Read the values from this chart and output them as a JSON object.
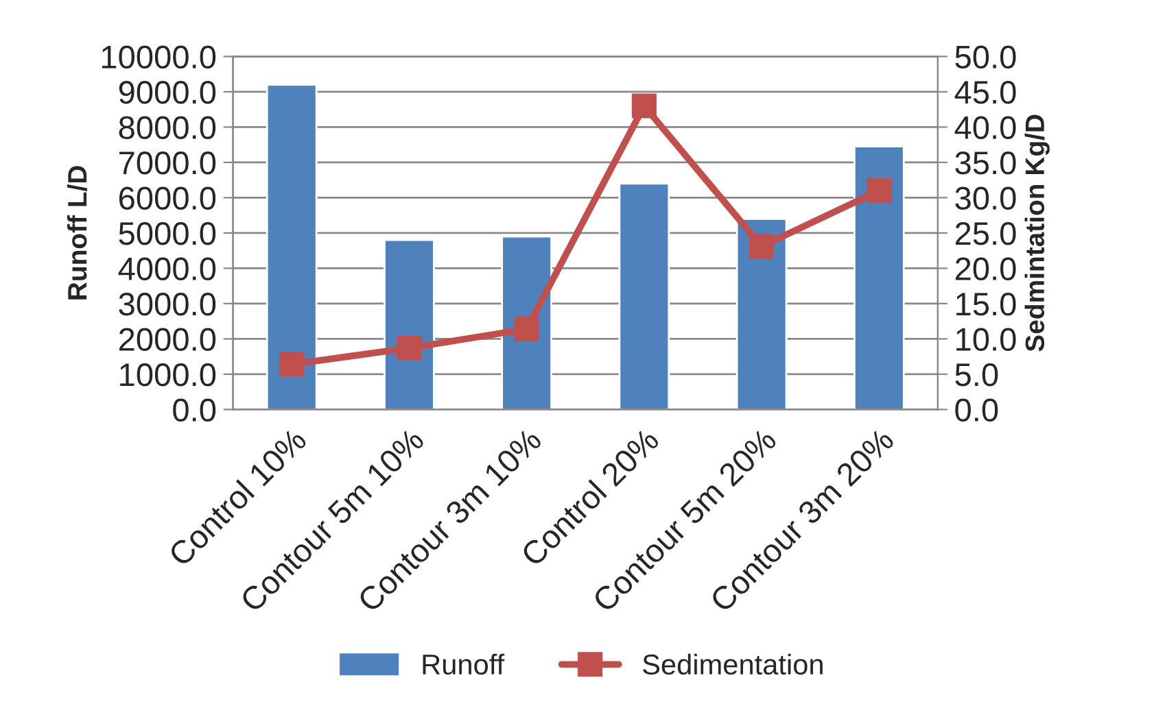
{
  "chart_data": {
    "type": "bar",
    "categories": [
      "Control 10%",
      "Contour 5m 10%",
      "Contour 3m 10%",
      "Control 20%",
      "Contour 5m 20%",
      "Contour 3m 20%"
    ],
    "series": [
      {
        "name": "Runoff",
        "color": "#4f81bd",
        "values": [
          9200,
          4800,
          4900,
          6400,
          5400,
          7450
        ]
      },
      {
        "name": "Sedimentation",
        "type": "line",
        "axis": "y2",
        "color": "#c0504d",
        "marker": "square",
        "values": [
          6.4,
          8.7,
          11.4,
          43.0,
          23.1,
          31.0
        ]
      }
    ],
    "ylabel": "Runoff L/D",
    "y2label": "Sedmintation Kg/D",
    "ylim": [
      0,
      10000
    ],
    "yticks": [
      {
        "value": 0,
        "label": "0.0"
      },
      {
        "value": 1000,
        "label": "1000.0"
      },
      {
        "value": 2000,
        "label": "2000.0"
      },
      {
        "value": 3000,
        "label": "3000.0"
      },
      {
        "value": 4000,
        "label": "4000.0"
      },
      {
        "value": 5000,
        "label": "5000.0"
      },
      {
        "value": 6000,
        "label": "6000.0"
      },
      {
        "value": 7000,
        "label": "7000.0"
      },
      {
        "value": 8000,
        "label": "8000.0"
      },
      {
        "value": 9000,
        "label": "9000.0"
      },
      {
        "value": 10000,
        "label": "10000.0"
      }
    ],
    "y2lim": [
      0,
      50
    ],
    "y2ticks": [
      {
        "value": 0,
        "label": "0.0"
      },
      {
        "value": 5,
        "label": "5.0"
      },
      {
        "value": 10,
        "label": "10.0"
      },
      {
        "value": 15,
        "label": "15.0"
      },
      {
        "value": 20,
        "label": "20.0"
      },
      {
        "value": 25,
        "label": "25.0"
      },
      {
        "value": 30,
        "label": "30.0"
      },
      {
        "value": 35,
        "label": "35.0"
      },
      {
        "value": 40,
        "label": "40.0"
      },
      {
        "value": 45,
        "label": "45.0"
      },
      {
        "value": 50,
        "label": "50.0"
      }
    ],
    "grid": "y",
    "legend": "bottom"
  }
}
